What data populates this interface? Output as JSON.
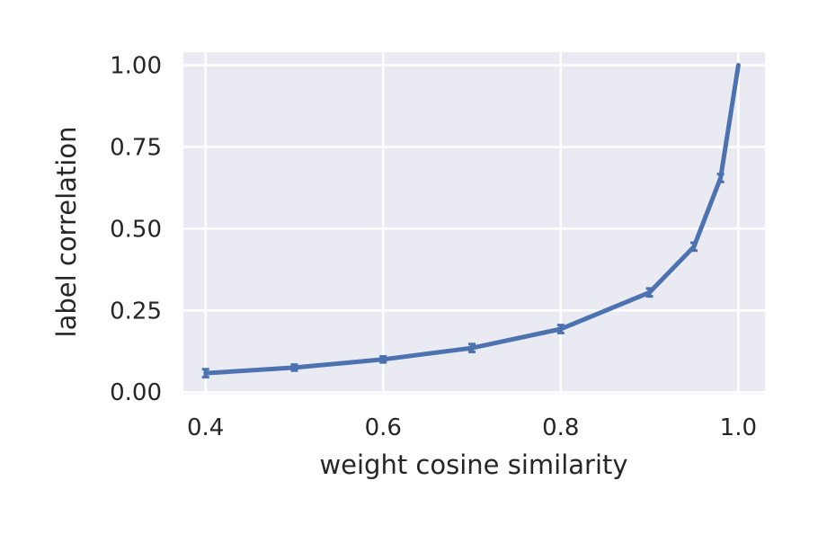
{
  "chart_data": {
    "type": "line",
    "title": "",
    "xlabel": "weight cosine similarity",
    "ylabel": "label correlation",
    "xlim": [
      0.375,
      1.03
    ],
    "ylim": [
      -0.005,
      1.04
    ],
    "xticks": [
      0.4,
      0.6,
      0.8,
      1.0
    ],
    "xtick_labels": [
      "0.4",
      "0.6",
      "0.8",
      "1.0"
    ],
    "yticks": [
      0.0,
      0.25,
      0.5,
      0.75,
      1.0
    ],
    "ytick_labels": [
      "0.00",
      "0.25",
      "0.50",
      "0.75",
      "1.00"
    ],
    "grid": true,
    "legend": "none",
    "colors": {
      "line": "#4c72b0",
      "plot_background": "#eaeaf2",
      "grid": "#ffffff",
      "text": "#262626"
    },
    "series": [
      {
        "x": [
          0.4,
          0.5,
          0.6,
          0.7,
          0.8,
          0.9,
          0.95,
          0.98,
          1.0
        ],
        "y": [
          0.058,
          0.075,
          0.1,
          0.135,
          0.193,
          0.305,
          0.445,
          0.655,
          1.0
        ],
        "error": [
          0.012,
          0.009,
          0.009,
          0.012,
          0.012,
          0.012,
          0.012,
          0.012,
          0.0
        ]
      }
    ]
  }
}
